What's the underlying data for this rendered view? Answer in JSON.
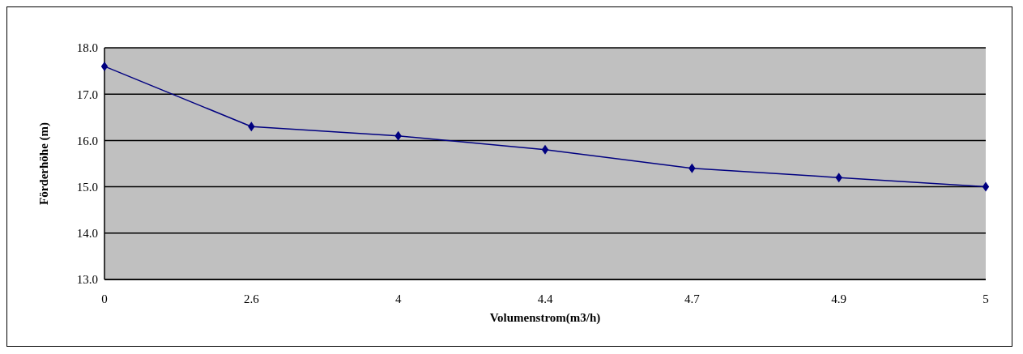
{
  "chart_data": {
    "type": "line",
    "xlabel": "Volumenstrom(m3/h)",
    "ylabel": "Förderhöhe (m)",
    "categories": [
      "0",
      "2.6",
      "4",
      "4.4",
      "4.7",
      "4.9",
      "5"
    ],
    "series": [
      {
        "color": "#000080",
        "values": [
          17.6,
          16.3,
          16.1,
          15.8,
          15.4,
          15.2,
          15.0
        ]
      }
    ],
    "ylim": [
      13,
      18
    ],
    "yticks": [
      {
        "value": 13,
        "label": "13.0"
      },
      {
        "value": 14,
        "label": "14.0"
      },
      {
        "value": 15,
        "label": "15.0"
      },
      {
        "value": 16,
        "label": "16.0"
      },
      {
        "value": 17,
        "label": "17.0"
      },
      {
        "value": 18,
        "label": "18.0"
      }
    ],
    "grid": "y",
    "marker": "diamond",
    "legend": false
  }
}
